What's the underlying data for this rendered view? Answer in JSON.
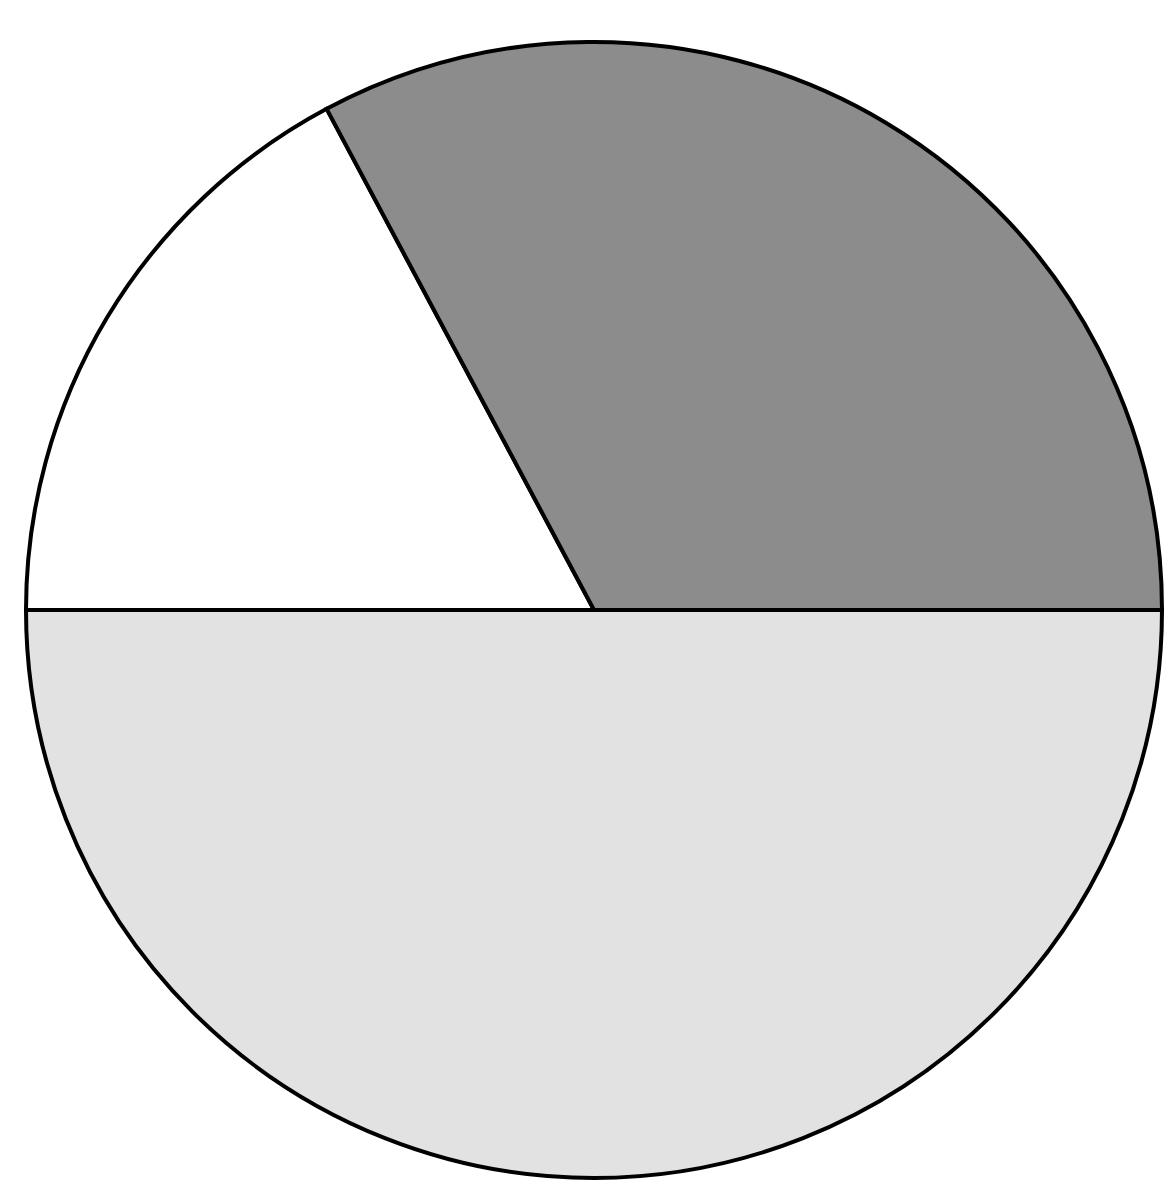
{
  "chart_data": {
    "type": "pie",
    "categories": [
      null,
      null,
      null
    ],
    "values": [
      17.2,
      32.8,
      50
    ],
    "colors": [
      "#ffffff",
      "#8c8c8c",
      "#e2e2e2"
    ],
    "legend": false
  }
}
